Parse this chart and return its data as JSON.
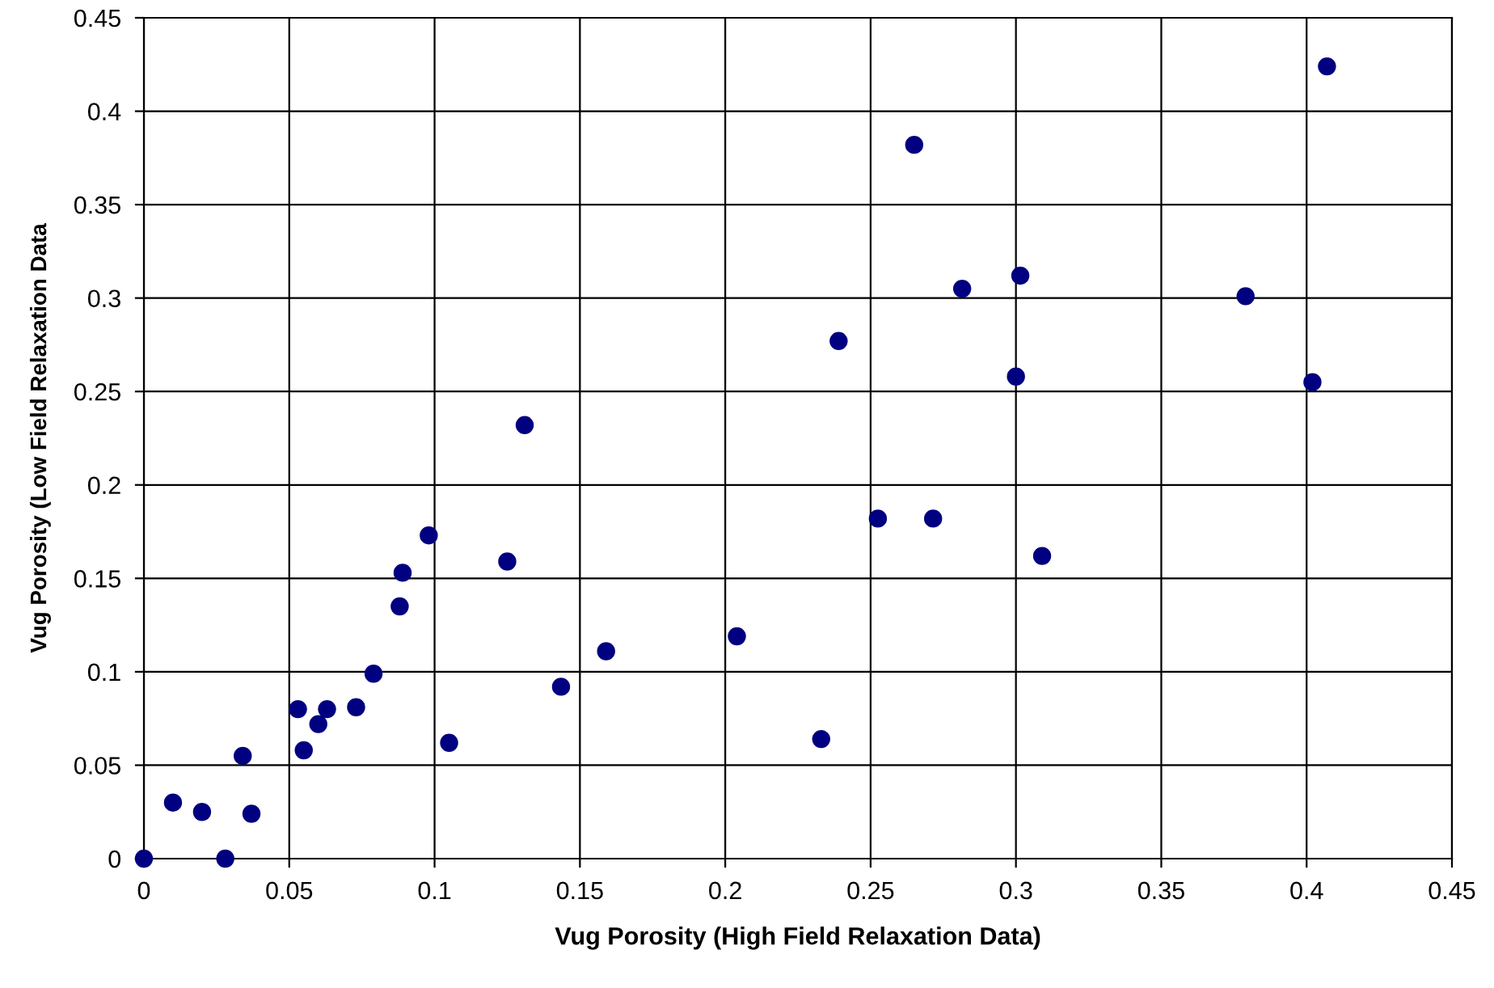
{
  "chart_data": {
    "type": "scatter",
    "xlabel": "Vug Porosity (High Field Relaxation Data)",
    "ylabel": "Vug Porosity (Low Field Relaxation Data",
    "x": [
      0,
      0.01,
      0.02,
      0.028,
      0.034,
      0.037,
      0.053,
      0.055,
      0.06,
      0.063,
      0.073,
      0.079,
      0.088,
      0.089,
      0.098,
      0.105,
      0.125,
      0.131,
      0.1435,
      0.159,
      0.204,
      0.233,
      0.239,
      0.2525,
      0.265,
      0.2715,
      0.2815,
      0.3,
      0.3015,
      0.309,
      0.379,
      0.402,
      0.407
    ],
    "series": [
      {
        "color": "#000080",
        "values": [
          0,
          0.03,
          0.025,
          0,
          0.055,
          0.024,
          0.08,
          0.058,
          0.072,
          0.08,
          0.081,
          0.099,
          0.135,
          0.153,
          0.173,
          0.062,
          0.159,
          0.232,
          0.092,
          0.111,
          0.119,
          0.064,
          0.277,
          0.182,
          0.382,
          0.182,
          0.305,
          0.258,
          0.312,
          0.162,
          0.301,
          0.255,
          0.424
        ]
      }
    ],
    "xlim": [
      0,
      0.45
    ],
    "ylim": [
      0,
      0.45
    ],
    "xticks": [
      0,
      0.05,
      0.1,
      0.15,
      0.2,
      0.25,
      0.3,
      0.35,
      0.4,
      0.45
    ],
    "yticks": [
      0,
      0.05,
      0.1,
      0.15,
      0.2,
      0.25,
      0.3,
      0.35,
      0.4,
      0.45
    ],
    "grid": true,
    "marker": "circle"
  }
}
